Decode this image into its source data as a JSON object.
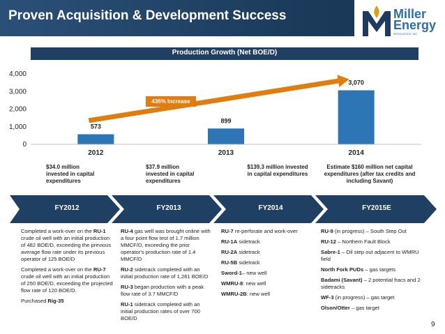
{
  "header": {
    "title": "Proven Acquisition & Development Success",
    "logo_line1": "Miller",
    "logo_line2": "Energy",
    "logo_sub": "RESOURCES, INC.",
    "bg_color": "#1f3f63"
  },
  "chart_data": {
    "type": "bar",
    "title": "Production Growth (Net BOE/D)",
    "categories": [
      "2012",
      "2013",
      "2014"
    ],
    "values": [
      573,
      899,
      3070
    ],
    "value_labels": [
      "573",
      "899",
      "3,070"
    ],
    "ylim": [
      0,
      4000
    ],
    "yticks": [
      0,
      1000,
      2000,
      3000,
      4000
    ],
    "ytick_labels": [
      "0",
      "1,000",
      "2,000",
      "3,000",
      "4,000"
    ],
    "bar_color": "#2e75b6",
    "grid": false,
    "annotation": {
      "text": "436% Increase",
      "arrow": "from 2012 to 2014",
      "color": "#e07d10"
    }
  },
  "capex": [
    "$34.0 million invested in capital expenditures",
    "$37.9 million invested in capital expenditures",
    "$139.3 million invested in capital expenditures",
    "Estimate $160 million net capital expenditures (after tax credits and including Savant)"
  ],
  "timeline": {
    "stages": [
      "FY2012",
      "FY2013",
      "FY2014",
      "FY2015E"
    ],
    "color": "#1f3f63"
  },
  "columns": {
    "fy2012": [
      {
        "pre": "Completed a work-over on the ",
        "bold": "RU-1",
        "post": " crude oil well with an initial production of 482 BOE/D, exceeding the previous average flow rate under its previous operator of 125 BOE/D"
      },
      {
        "pre": "Completed a work-over on the ",
        "bold": "RU-7",
        "post": " crude oil well with an initial production of 250 BOE/D, exceeding the projected flow rate of 120 BOE/D."
      },
      {
        "pre": "Purchased ",
        "bold": "Rig-35",
        "post": ""
      }
    ],
    "fy2013": [
      {
        "pre": "",
        "bold": "RU-4",
        "post": " gas well was brought online with a four point flow test of 1.7 million MMCF/D, exceeding the prior operator's production rate of 1.4 MMCF/D"
      },
      {
        "pre": "",
        "bold": "RU-2",
        "post": " sidetrack completed with an initial production rate of 1,281 BOE/D"
      },
      {
        "pre": "",
        "bold": "RU-3",
        "post": " began production with a peak flow rate of 3.7 MMCF/D"
      },
      {
        "pre": "",
        "bold": "RU-1",
        "post": " sidetrack completed with an initial production rates of over 700 BOE/D"
      }
    ],
    "fy2014": [
      {
        "pre": "",
        "bold": "RU-7",
        "post": " re-perforate and work-over"
      },
      {
        "pre": "",
        "bold": "RU-1A",
        "post": " sidetrack"
      },
      {
        "pre": "",
        "bold": "RU-2A",
        "post": " sidetrack"
      },
      {
        "pre": "",
        "bold": "RU-5B",
        "post": " sidetrack"
      },
      {
        "pre": "",
        "bold": "Sword-1",
        "post": "– new well"
      },
      {
        "pre": "",
        "bold": "WMRU-8",
        "post": ": new well"
      },
      {
        "pre": "",
        "bold": "WMRU-2B",
        "post": ": new well"
      }
    ],
    "fy2015e": [
      {
        "pre": "",
        "bold": "RU-9",
        "post": " (in progress) – South Step Out"
      },
      {
        "pre": "",
        "bold": "RU-12",
        "post": " – Northern Fault Block"
      },
      {
        "pre": "",
        "bold": "Sabre-1",
        "post": " – Oil step out adjacent to WMRU field"
      },
      {
        "pre": "",
        "bold": "North Fork PUDs",
        "post": " – gas targets"
      },
      {
        "pre": "",
        "bold": "Badami (Savant)",
        "post": " – 2 potential fracs and 2 sidetracks"
      },
      {
        "pre": "",
        "bold": "WF-3",
        "post": " (in progress) – gas target"
      },
      {
        "pre": "",
        "bold": "Olson/Otter",
        "post": " – gas target"
      }
    ]
  },
  "page_number": "9"
}
